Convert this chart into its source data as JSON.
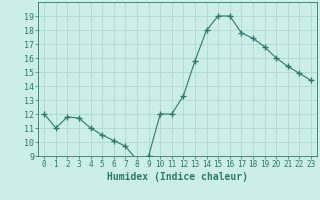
{
  "x": [
    0,
    1,
    2,
    3,
    4,
    5,
    6,
    7,
    8,
    9,
    10,
    11,
    12,
    13,
    14,
    15,
    16,
    17,
    18,
    19,
    20,
    21,
    22,
    23
  ],
  "y": [
    12,
    11,
    11.8,
    11.7,
    11,
    10.5,
    10.1,
    9.7,
    8.7,
    9.0,
    12,
    12,
    13.3,
    15.8,
    18,
    19,
    19,
    17.8,
    17.4,
    16.8,
    16,
    15.4,
    14.9,
    14.4
  ],
  "line_color": "#2d7a6b",
  "marker": "+",
  "marker_size": 4,
  "bg_color": "#cceee8",
  "grid_color": "#b0d8d2",
  "xlabel": "Humidex (Indice chaleur)",
  "ylim": [
    9,
    20
  ],
  "xlim": [
    -0.5,
    23.5
  ],
  "yticks": [
    9,
    10,
    11,
    12,
    13,
    14,
    15,
    16,
    17,
    18,
    19
  ],
  "xticks": [
    0,
    1,
    2,
    3,
    4,
    5,
    6,
    7,
    8,
    9,
    10,
    11,
    12,
    13,
    14,
    15,
    16,
    17,
    18,
    19,
    20,
    21,
    22,
    23
  ],
  "axis_color": "#2d7a6b",
  "tick_color": "#2d7a6b",
  "label_color": "#2d7a6b",
  "tick_fontsize": 5.5,
  "xlabel_fontsize": 7.0
}
